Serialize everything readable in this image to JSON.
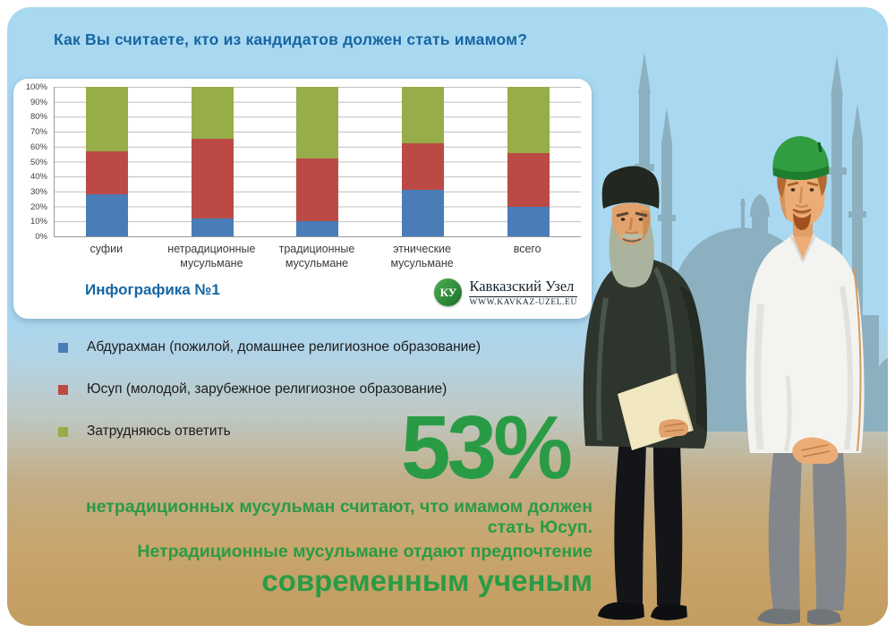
{
  "poster": {
    "title": "Как Вы считаете, кто из кандидатов должен стать имамом?",
    "infographic_label": "Инфографика №1",
    "logo": {
      "monogram": "КУ",
      "name": "Кавказский Узел",
      "url": "WWW.KAVKAZ-UZEL.EU"
    },
    "highlight": {
      "big_number": "53%",
      "line1": "нетрадиционных мусульман считают, что имамом должен стать Юсуп.",
      "line2": "Нетрадиционные мусульмане отдают предпочтение",
      "line3": "современным ученым"
    },
    "colors": {
      "title_blue": "#1566a3",
      "accent_green": "#2a9b45",
      "sky": "#a9d8f1",
      "sand": "#c39c60",
      "mosque_silhouette": "#8cb0bf"
    }
  },
  "chart_data": {
    "type": "bar",
    "stacked": true,
    "title": "Как Вы считаете, кто из кандидатов должен стать имамом?",
    "categories": [
      "суфии",
      "нетрадиционные мусульмане",
      "традиционные мусульмане",
      "этнические мусульмане",
      "всего"
    ],
    "series": [
      {
        "name": "Абдурахман (пожилой, домашнее религиозное образование)",
        "color": "#4a7cb8",
        "values": [
          28,
          12,
          10,
          31,
          20
        ]
      },
      {
        "name": "Юсуп (молодой, зарубежное религиозное образование)",
        "color": "#bb4a44",
        "values": [
          29,
          53,
          42,
          31,
          36
        ]
      },
      {
        "name": "Затрудняюсь ответить",
        "color": "#97ad49",
        "values": [
          43,
          35,
          48,
          38,
          44
        ]
      }
    ],
    "ylim": [
      0,
      100
    ],
    "yticks": [
      "0%",
      "10%",
      "20%",
      "30%",
      "40%",
      "50%",
      "60%",
      "70%",
      "80%",
      "90%",
      "100%"
    ],
    "grid": true,
    "legend_position": "below-left",
    "xlabel": "",
    "ylabel": ""
  }
}
